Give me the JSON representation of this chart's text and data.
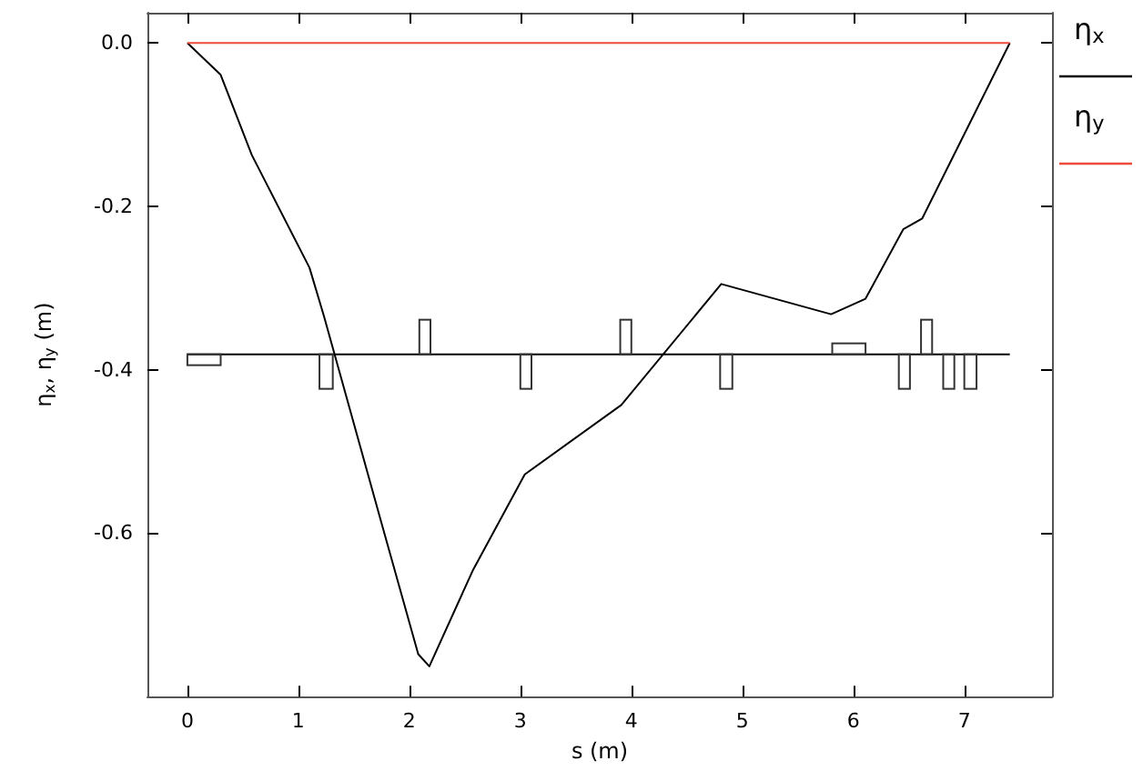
{
  "chart_data": {
    "type": "line",
    "xlabel": "s (m)",
    "ylabel": "η$_{x}$, η$_{y}$ (m)",
    "xlim": [
      -0.36,
      7.79
    ],
    "ylim": [
      -0.8,
      0.037
    ],
    "xticks": [
      0,
      1,
      2,
      3,
      4,
      5,
      6,
      7
    ],
    "yticks": [
      {
        "value": 0,
        "label": "0.0"
      },
      {
        "value": -0.2,
        "label": "-0.2"
      },
      {
        "value": -0.4,
        "label": "-0.4"
      },
      {
        "value": -0.6,
        "label": "-0.6"
      }
    ],
    "series": [
      {
        "name": "η$_{x}$",
        "color": "#000000",
        "x": [
          0,
          0.3,
          0.58,
          1.1,
          1.23,
          1.75,
          2.08,
          2.18,
          2.57,
          3.04,
          3.91,
          4.81,
          5.8,
          6.11,
          6.45,
          6.62,
          7.41
        ],
        "values": [
          0,
          -0.039,
          -0.137,
          -0.275,
          -0.334,
          -0.588,
          -0.748,
          -0.763,
          -0.646,
          -0.528,
          -0.443,
          -0.295,
          -0.332,
          -0.313,
          -0.228,
          -0.215,
          0
        ]
      },
      {
        "name": "η$_{y}$",
        "color": "#f04a3a",
        "x": [
          0,
          7.41
        ],
        "values": [
          0,
          0
        ]
      }
    ],
    "ref_lines": [
      {
        "axis": "y",
        "value": -0.381,
        "color": "#000000"
      }
    ],
    "legend": "top right",
    "grid": false,
    "marker": "none",
    "line_style": "solid"
  }
}
